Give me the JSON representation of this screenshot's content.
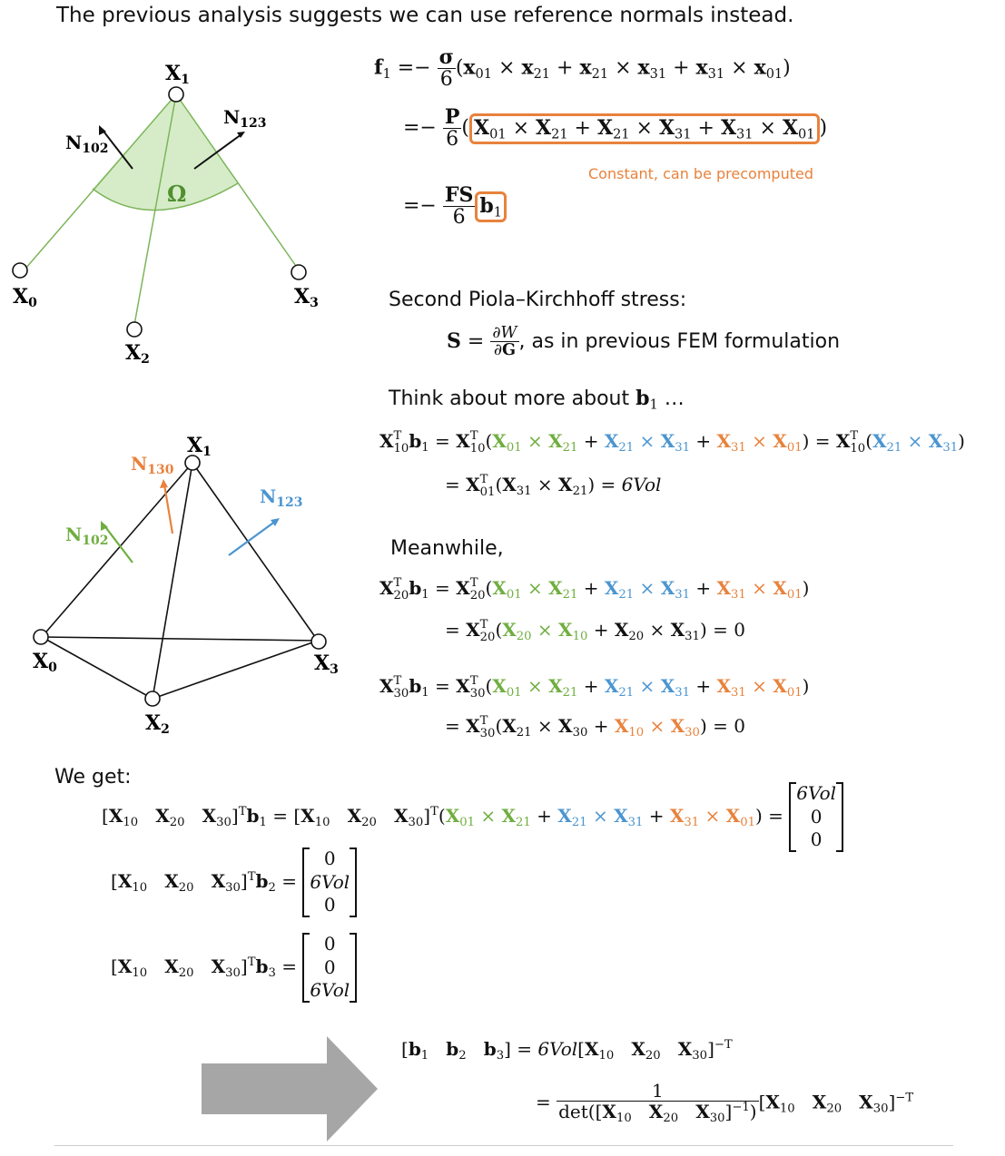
{
  "title": "The previous analysis suggests we can use reference normals instead.",
  "constant_note": "Constant, can be precomputed",
  "pk_heading": "Second Piola–Kirchhoff stress:",
  "pk_desc": ", as in previous FEM formulation",
  "think_text": "Think about more about",
  "think_tail": " …",
  "meanwhile": "Meanwhile,",
  "we_get": "We get:",
  "vol": "6Vol",
  "colors": {
    "green": "#6fae3f",
    "blue": "#4a95d1",
    "orange": "#e8823c",
    "arrow_gray": "#a6a6a6"
  },
  "fig1": {
    "vertices": {
      "x0": "X",
      "x0s": "0",
      "x1": "X",
      "x1s": "1",
      "x2": "X",
      "x2s": "2",
      "x3": "X",
      "x3s": "3"
    },
    "normals": {
      "n102": "N",
      "n102s": "102",
      "n123": "N",
      "n123s": "123"
    },
    "omega": "Ω"
  },
  "fig2": {
    "vertices": {
      "x0": "X",
      "x0s": "0",
      "x1": "X",
      "x1s": "1",
      "x2": "X",
      "x2s": "2",
      "x3": "X",
      "x3s": "3"
    },
    "normals": {
      "n130": "N",
      "n130s": "130",
      "n123": "N",
      "n123s": "123",
      "n102": "N",
      "n102s": "102"
    }
  },
  "icons": {
    "big_arrow": "right-arrow-icon"
  }
}
